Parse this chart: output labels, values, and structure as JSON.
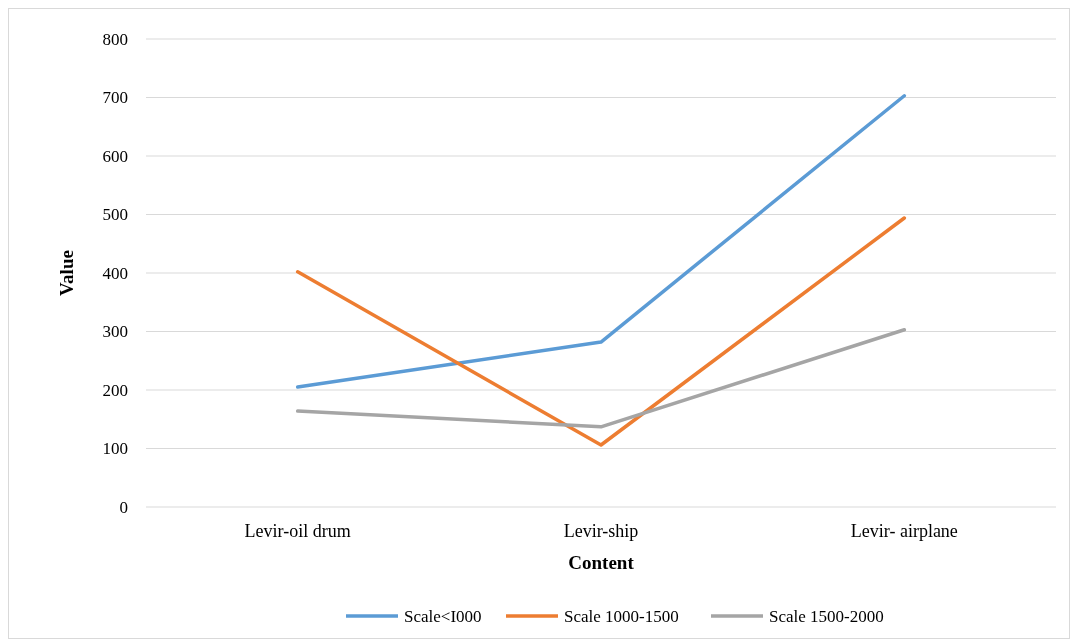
{
  "chart_data": {
    "type": "line",
    "xlabel": "Content",
    "ylabel": "Value",
    "categories": [
      "Levir-oil drum",
      "Levir-ship",
      "Levir- airplane"
    ],
    "series": [
      {
        "name": "Scale<I000",
        "color": "#5b9bd5",
        "values": [
          205,
          282,
          703
        ]
      },
      {
        "name": "Scale 1000-1500",
        "color": "#ed7d31",
        "values": [
          402,
          106,
          494
        ]
      },
      {
        "name": "Scale 1500-2000",
        "color": "#a5a5a5",
        "values": [
          164,
          137,
          303
        ]
      }
    ],
    "ylim": [
      0,
      800
    ],
    "yticks": [
      0,
      100,
      200,
      300,
      400,
      500,
      600,
      700,
      800
    ],
    "grid": "y",
    "legend": "bottom",
    "marker": "none",
    "line_style": "solid"
  }
}
